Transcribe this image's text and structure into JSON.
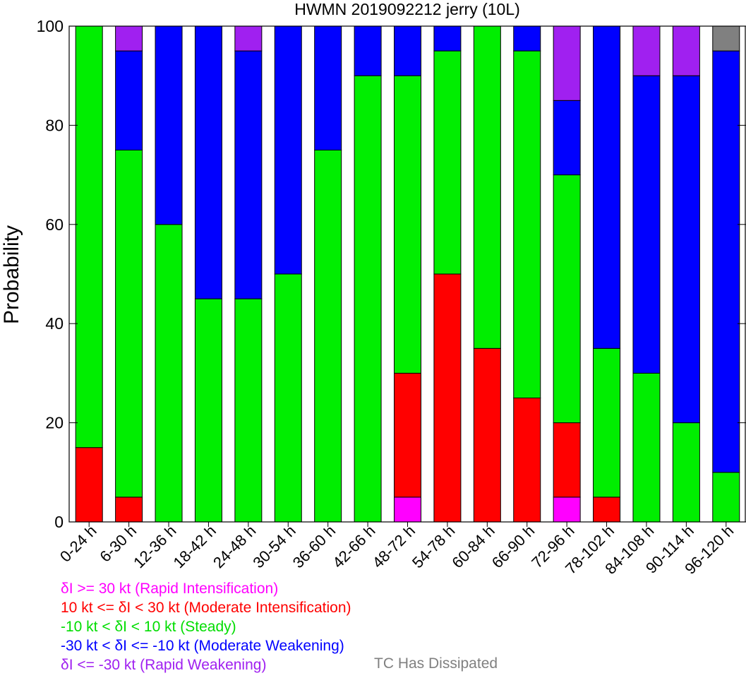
{
  "chart_data": {
    "type": "bar",
    "stacked": true,
    "title": "HWMN 2019092212 jerry (10L)",
    "xlabel": "",
    "ylabel": "Probability",
    "ylim": [
      0,
      100
    ],
    "yticks": [
      0,
      20,
      40,
      60,
      80,
      100
    ],
    "grid": false,
    "legend_position": "bottom",
    "categories": [
      "0-24 h",
      "6-30 h",
      "12-36 h",
      "18-42 h",
      "24-48 h",
      "30-54 h",
      "36-60 h",
      "42-66 h",
      "48-72 h",
      "54-78 h",
      "60-84 h",
      "66-90 h",
      "72-96 h",
      "78-102 h",
      "84-108 h",
      "90-114 h",
      "96-120 h"
    ],
    "series": [
      {
        "key": "ri",
        "color": "#ff00ff",
        "values": [
          0,
          0,
          0,
          0,
          0,
          0,
          0,
          0,
          5,
          0,
          0,
          0,
          5,
          0,
          0,
          0,
          0
        ]
      },
      {
        "key": "mi",
        "color": "#ff0000",
        "values": [
          15,
          5,
          0,
          0,
          0,
          0,
          0,
          0,
          25,
          50,
          35,
          25,
          15,
          5,
          0,
          0,
          0
        ]
      },
      {
        "key": "st",
        "color": "#00ee00",
        "values": [
          85,
          70,
          60,
          45,
          45,
          50,
          75,
          90,
          60,
          45,
          65,
          70,
          50,
          30,
          30,
          20,
          10
        ]
      },
      {
        "key": "mw",
        "color": "#0000ff",
        "values": [
          0,
          20,
          40,
          55,
          50,
          50,
          25,
          10,
          10,
          5,
          0,
          5,
          15,
          65,
          60,
          70,
          85
        ]
      },
      {
        "key": "rw",
        "color": "#a020f0",
        "values": [
          0,
          5,
          0,
          0,
          5,
          0,
          0,
          0,
          0,
          0,
          0,
          0,
          15,
          0,
          10,
          10,
          0
        ]
      },
      {
        "key": "td",
        "color": "#808080",
        "values": [
          0,
          0,
          0,
          0,
          0,
          0,
          0,
          0,
          0,
          0,
          0,
          0,
          0,
          0,
          0,
          0,
          5
        ]
      }
    ]
  },
  "legend": {
    "ri": {
      "text": "δI >= 30 kt (Rapid Intensification)",
      "color": "#ff00ff"
    },
    "mi": {
      "text": "10 kt <= δI < 30 kt (Moderate Intensification)",
      "color": "#ff0000"
    },
    "st": {
      "text": "-10 kt < δI < 10 kt (Steady)",
      "color": "#00ee00"
    },
    "mw": {
      "text": "-30 kt < δI <= -10 kt (Moderate Weakening)",
      "color": "#0000ff"
    },
    "rw": {
      "text": "δI <= -30 kt (Rapid Weakening)",
      "color": "#a020f0"
    },
    "td": {
      "text": "TC Has Dissipated",
      "color": "#808080"
    }
  }
}
